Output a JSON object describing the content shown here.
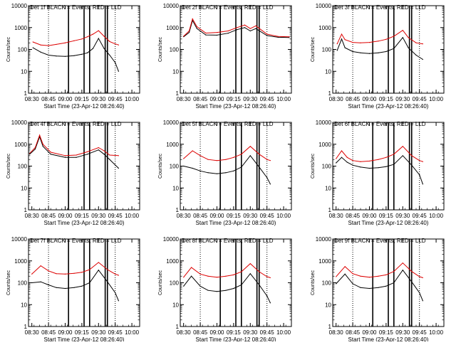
{
  "figure": {
    "x_axis_title": "Start Time (23-Apr-12 08:26:40)",
    "y_axis_title": "Counts/sec",
    "x_tick_labels": [
      "08:30",
      "08:45",
      "09:00",
      "09:15",
      "09:30",
      "09:45",
      "10:00"
    ],
    "y_tick_labels": [
      "1",
      "10",
      "100",
      "1000",
      "10000"
    ],
    "colors": {
      "events": "#000000",
      "lld": "#dd0000",
      "axes": "#000000"
    }
  },
  "chart_data": [
    {
      "type": "line",
      "title": "Det 1f BLACK = Events, RED = LLD",
      "y_scale": "log",
      "ylim": [
        1,
        10000
      ],
      "xlim": [
        "08:27",
        "10:07"
      ],
      "x": [
        "08:31",
        "08:38",
        "08:45",
        "08:52",
        "09:00",
        "09:08",
        "09:15",
        "09:20",
        "09:25",
        "09:30",
        "09:35",
        "09:40",
        "09:45",
        "09:48"
      ],
      "series": [
        {
          "name": "BLACK = Events",
          "color": "#000000",
          "values": [
            120,
            75,
            55,
            50,
            48,
            52,
            60,
            70,
            110,
            320,
            110,
            55,
            25,
            10
          ]
        },
        {
          "name": "RED = LLD",
          "color": "#dd0000",
          "values": [
            220,
            160,
            150,
            170,
            200,
            250,
            300,
            380,
            500,
            720,
            400,
            230,
            180,
            160
          ]
        }
      ],
      "vertical_lines": {
        "dotted": [
          "08:45",
          "09:45"
        ],
        "solid": [
          "09:03",
          "09:17",
          "09:22",
          "09:36",
          "09:38"
        ]
      }
    },
    {
      "type": "line",
      "title": "Det 2f BLACK = Events, RED = LLD",
      "y_scale": "log",
      "ylim": [
        1,
        10000
      ],
      "xlim": [
        "08:27",
        "10:07"
      ],
      "x": [
        "08:30",
        "08:35",
        "08:38",
        "08:42",
        "08:50",
        "09:00",
        "09:10",
        "09:18",
        "09:25",
        "09:30",
        "09:35",
        "09:45",
        "09:55",
        "10:05"
      ],
      "series": [
        {
          "name": "BLACK = Events",
          "color": "#000000",
          "values": [
            380,
            600,
            2100,
            900,
            460,
            450,
            550,
            800,
            1000,
            700,
            900,
            430,
            360,
            350
          ]
        },
        {
          "name": "RED = LLD",
          "color": "#dd0000",
          "values": [
            400,
            700,
            2500,
            1100,
            560,
            600,
            700,
            1000,
            1300,
            900,
            1200,
            500,
            390,
            380
          ]
        }
      ],
      "vertical_lines": {
        "dotted": [
          "08:45",
          "09:45"
        ],
        "solid": [
          "09:03",
          "09:17",
          "09:22",
          "09:36",
          "09:38"
        ]
      }
    },
    {
      "type": "line",
      "title": "Det 3f BLACK = Events, RED = LLD",
      "y_scale": "log",
      "ylim": [
        1,
        10000
      ],
      "xlim": [
        "08:27",
        "10:07"
      ],
      "x": [
        "08:31",
        "08:35",
        "08:38",
        "08:45",
        "08:52",
        "09:00",
        "09:08",
        "09:15",
        "09:22",
        "09:30",
        "09:35",
        "09:42",
        "09:48"
      ],
      "series": [
        {
          "name": "BLACK = Events",
          "color": "#000000",
          "values": [
            90,
            300,
            120,
            80,
            70,
            65,
            70,
            80,
            110,
            350,
            120,
            55,
            35
          ]
        },
        {
          "name": "RED = LLD",
          "color": "#dd0000",
          "values": [
            180,
            500,
            280,
            210,
            200,
            210,
            240,
            290,
            400,
            750,
            350,
            200,
            180
          ]
        }
      ],
      "vertical_lines": {
        "dotted": [
          "08:45",
          "09:45"
        ],
        "solid": [
          "09:03",
          "09:17",
          "09:22",
          "09:36",
          "09:38"
        ]
      }
    },
    {
      "type": "line",
      "title": "Det 4f BLACK = Events, RED = LLD",
      "y_scale": "log",
      "ylim": [
        1,
        10000
      ],
      "xlim": [
        "08:27",
        "10:07"
      ],
      "x": [
        "08:28",
        "08:33",
        "08:37",
        "08:40",
        "08:47",
        "09:00",
        "09:10",
        "09:20",
        "09:30",
        "09:35",
        "09:40",
        "09:48"
      ],
      "series": [
        {
          "name": "BLACK = Events",
          "color": "#000000",
          "values": [
            350,
            600,
            2200,
            800,
            350,
            250,
            250,
            350,
            550,
            350,
            200,
            80
          ]
        },
        {
          "name": "RED = LLD",
          "color": "#dd0000",
          "values": [
            380,
            700,
            2600,
            1000,
            430,
            300,
            320,
            450,
            700,
            500,
            320,
            300
          ]
        }
      ],
      "vertical_lines": {
        "dotted": [
          "08:45",
          "09:45"
        ],
        "solid": [
          "09:03",
          "09:17",
          "09:22",
          "09:36",
          "09:38"
        ]
      }
    },
    {
      "type": "line",
      "title": "Det 5f BLACK = Events, RED = LLD",
      "y_scale": "log",
      "ylim": [
        1,
        10000
      ],
      "xlim": [
        "08:27",
        "10:07"
      ],
      "x": [
        "08:30",
        "08:38",
        "08:45",
        "08:52",
        "09:00",
        "09:08",
        "09:15",
        "09:22",
        "09:30",
        "09:38",
        "09:45",
        "09:48"
      ],
      "series": [
        {
          "name": "BLACK = Events",
          "color": "#000000",
          "values": [
            100,
            80,
            60,
            50,
            45,
            50,
            60,
            90,
            300,
            90,
            30,
            15
          ]
        },
        {
          "name": "RED = LLD",
          "color": "#dd0000",
          "values": [
            220,
            500,
            300,
            200,
            180,
            200,
            250,
            350,
            800,
            350,
            200,
            180
          ]
        }
      ],
      "vertical_lines": {
        "dotted": [
          "08:45",
          "09:45"
        ],
        "solid": [
          "09:03",
          "09:17",
          "09:22",
          "09:36",
          "09:38"
        ]
      }
    },
    {
      "type": "line",
      "title": "Det 6f BLACK = Events, RED = LLD",
      "y_scale": "log",
      "ylim": [
        1,
        10000
      ],
      "xlim": [
        "08:27",
        "10:07"
      ],
      "x": [
        "08:30",
        "08:35",
        "08:40",
        "08:45",
        "08:52",
        "09:00",
        "09:08",
        "09:15",
        "09:22",
        "09:30",
        "09:38",
        "09:45",
        "09:48"
      ],
      "series": [
        {
          "name": "BLACK = Events",
          "color": "#000000",
          "values": [
            140,
            250,
            150,
            110,
            90,
            80,
            85,
            95,
            120,
            300,
            110,
            40,
            15
          ]
        },
        {
          "name": "RED = LLD",
          "color": "#dd0000",
          "values": [
            220,
            500,
            250,
            180,
            160,
            170,
            200,
            250,
            350,
            800,
            300,
            180,
            160
          ]
        }
      ],
      "vertical_lines": {
        "dotted": [
          "08:45",
          "09:45"
        ],
        "solid": [
          "09:03",
          "09:17",
          "09:22",
          "09:36",
          "09:38"
        ]
      }
    },
    {
      "type": "line",
      "title": "Det 7f BLACK = Events, RED = LLD",
      "y_scale": "log",
      "ylim": [
        1,
        10000
      ],
      "xlim": [
        "08:27",
        "10:07"
      ],
      "x": [
        "08:30",
        "08:38",
        "08:45",
        "08:52",
        "09:00",
        "09:08",
        "09:15",
        "09:22",
        "09:30",
        "09:38",
        "09:45",
        "09:48"
      ],
      "series": [
        {
          "name": "BLACK = Events",
          "color": "#000000",
          "values": [
            100,
            110,
            80,
            60,
            55,
            60,
            70,
            100,
            380,
            110,
            35,
            15
          ]
        },
        {
          "name": "RED = LLD",
          "color": "#dd0000",
          "values": [
            250,
            600,
            350,
            260,
            250,
            270,
            300,
            400,
            850,
            400,
            250,
            220
          ]
        }
      ],
      "vertical_lines": {
        "dotted": [
          "08:45",
          "09:45"
        ],
        "solid": [
          "09:03",
          "09:17",
          "09:22",
          "09:36",
          "09:38"
        ]
      }
    },
    {
      "type": "line",
      "title": "Det 8f BLACK = Events, RED = LLD",
      "y_scale": "log",
      "ylim": [
        1,
        10000
      ],
      "xlim": [
        "08:27",
        "10:07"
      ],
      "x": [
        "08:30",
        "08:37",
        "08:45",
        "08:52",
        "09:00",
        "09:08",
        "09:15",
        "09:22",
        "09:30",
        "09:38",
        "09:45",
        "09:48"
      ],
      "series": [
        {
          "name": "BLACK = Events",
          "color": "#000000",
          "values": [
            70,
            200,
            70,
            45,
            40,
            45,
            55,
            80,
            260,
            80,
            25,
            12
          ]
        },
        {
          "name": "RED = LLD",
          "color": "#dd0000",
          "values": [
            180,
            500,
            250,
            200,
            180,
            200,
            230,
            320,
            750,
            320,
            190,
            170
          ]
        }
      ],
      "vertical_lines": {
        "dotted": [
          "08:45",
          "09:45"
        ],
        "solid": [
          "09:03",
          "09:17",
          "09:22",
          "09:36",
          "09:38"
        ]
      }
    },
    {
      "type": "line",
      "title": "Det 9f BLACK = Events, RED = LLD",
      "y_scale": "log",
      "ylim": [
        1,
        10000
      ],
      "xlim": [
        "08:27",
        "10:07"
      ],
      "x": [
        "08:30",
        "08:38",
        "08:45",
        "08:52",
        "09:00",
        "09:08",
        "09:15",
        "09:22",
        "09:30",
        "09:38",
        "09:45",
        "09:48"
      ],
      "series": [
        {
          "name": "BLACK = Events",
          "color": "#000000",
          "values": [
            90,
            250,
            90,
            60,
            55,
            60,
            70,
            100,
            380,
            110,
            35,
            15
          ]
        },
        {
          "name": "RED = LLD",
          "color": "#dd0000",
          "values": [
            190,
            550,
            260,
            200,
            180,
            200,
            230,
            330,
            800,
            330,
            190,
            170
          ]
        }
      ],
      "vertical_lines": {
        "dotted": [
          "08:45",
          "09:45"
        ],
        "solid": [
          "09:03",
          "09:17",
          "09:22",
          "09:36",
          "09:38"
        ]
      }
    }
  ]
}
